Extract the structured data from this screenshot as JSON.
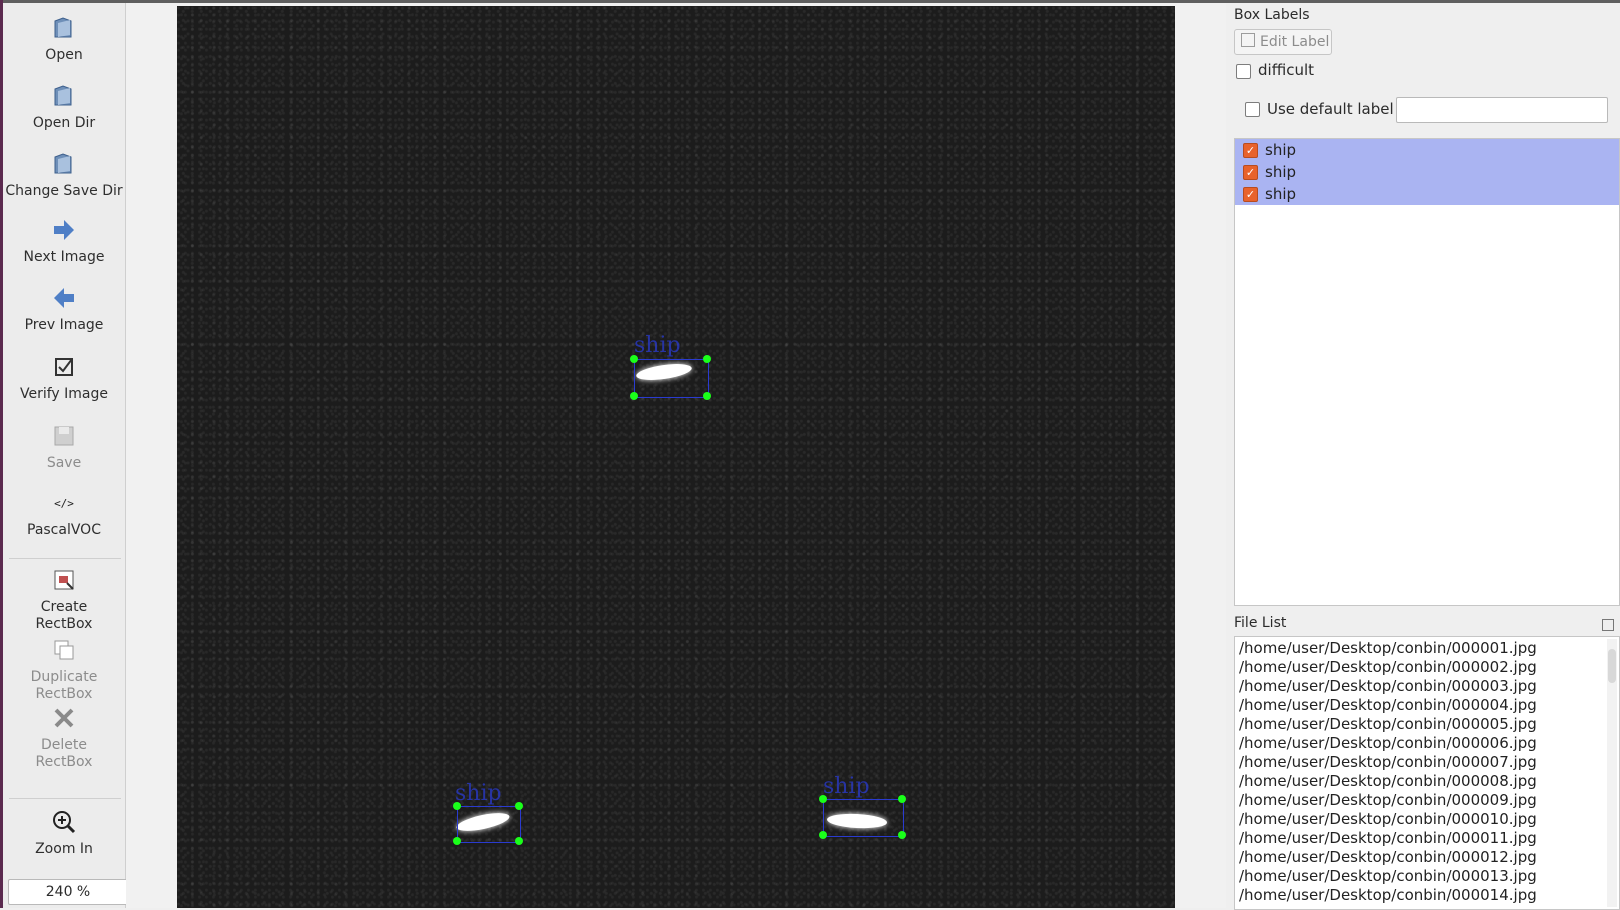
{
  "toolbar": {
    "items": [
      {
        "label": "Open",
        "icon": "folder-open-icon",
        "enabled": true
      },
      {
        "label": "Open Dir",
        "icon": "folder-open-icon",
        "enabled": true
      },
      {
        "label": "Change Save Dir",
        "icon": "folder-open-icon",
        "enabled": true
      },
      {
        "label": "Next Image",
        "icon": "arrow-right-icon",
        "enabled": true
      },
      {
        "label": "Prev Image",
        "icon": "arrow-left-icon",
        "enabled": true
      },
      {
        "label": "Verify Image",
        "icon": "checkbox-icon",
        "enabled": true
      },
      {
        "label": "Save",
        "icon": "save-icon",
        "enabled": false
      },
      {
        "label": "PascalVOC",
        "icon": "code-icon",
        "enabled": true
      },
      {
        "label_line1": "Create",
        "label_line2": "RectBox",
        "icon": "create-rectbox-icon",
        "enabled": true
      },
      {
        "label_line1": "Duplicate",
        "label_line2": "RectBox",
        "icon": "duplicate-icon",
        "enabled": false
      },
      {
        "label_line1": "Delete",
        "label_line2": "RectBox",
        "icon": "delete-icon",
        "enabled": false
      },
      {
        "label": "Zoom In",
        "icon": "zoom-in-icon",
        "enabled": true
      }
    ],
    "zoom_value": "240 %"
  },
  "canvas": {
    "annotations": [
      {
        "label": "ship"
      },
      {
        "label": "ship"
      },
      {
        "label": "ship"
      }
    ]
  },
  "right_panel": {
    "box_labels_title": "Box Labels",
    "edit_label_button": "Edit Label",
    "difficult_label": "difficult",
    "use_default_label": "Use default label",
    "default_label_value": "",
    "labels": [
      "ship",
      "ship",
      "ship"
    ],
    "file_list_title": "File List",
    "files": [
      "/home/user/Desktop/conbin/000001.jpg",
      "/home/user/Desktop/conbin/000002.jpg",
      "/home/user/Desktop/conbin/000003.jpg",
      "/home/user/Desktop/conbin/000004.jpg",
      "/home/user/Desktop/conbin/000005.jpg",
      "/home/user/Desktop/conbin/000006.jpg",
      "/home/user/Desktop/conbin/000007.jpg",
      "/home/user/Desktop/conbin/000008.jpg",
      "/home/user/Desktop/conbin/000009.jpg",
      "/home/user/Desktop/conbin/000010.jpg",
      "/home/user/Desktop/conbin/000011.jpg",
      "/home/user/Desktop/conbin/000012.jpg",
      "/home/user/Desktop/conbin/000013.jpg",
      "/home/user/Desktop/conbin/000014.jpg"
    ]
  }
}
